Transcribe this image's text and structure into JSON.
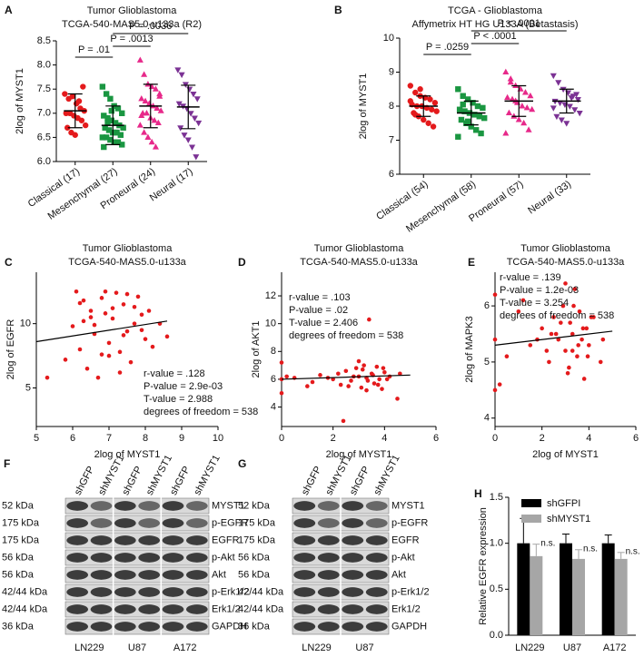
{
  "chart_data": [
    {
      "panel": "A",
      "type": "strip",
      "title": "Tumor Glioblastoma",
      "subtitle": "TCGA-540-MAS5.0-u133a (R2)",
      "ylabel": "2log of MYST1",
      "categories": [
        "Classical (17)",
        "Mesenchymal (27)",
        "Proneural (24)",
        "Neural (17)"
      ],
      "ylim": [
        6,
        8.5
      ],
      "yticks": [
        {
          "value": 6,
          "label": "6.0"
        },
        {
          "value": 6.5,
          "label": "6.5"
        },
        {
          "value": 7,
          "label": "7.0"
        },
        {
          "value": 7.5,
          "label": "7.5"
        },
        {
          "value": 8,
          "label": "8.0"
        },
        {
          "value": 8.5,
          "label": "8.5"
        }
      ],
      "groups": [
        {
          "color": "#e41a1c",
          "marker": "circle",
          "mean": 7.05,
          "sd": 0.35,
          "values": [
            7.4,
            7.3,
            7.35,
            7.2,
            7.1,
            7.05,
            7.0,
            7.0,
            6.95,
            6.9,
            6.85,
            6.75,
            6.7,
            6.6,
            6.55,
            7.25,
            7.55
          ]
        },
        {
          "color": "#1a9641",
          "marker": "square",
          "mean": 6.75,
          "sd": 0.4,
          "values": [
            7.55,
            7.4,
            7.3,
            7.15,
            7.1,
            7.0,
            6.95,
            6.9,
            6.85,
            6.8,
            6.75,
            6.7,
            6.7,
            6.65,
            6.6,
            6.6,
            6.55,
            6.5,
            6.5,
            6.45,
            6.4,
            6.4,
            6.35,
            6.3,
            6.8,
            7.05,
            6.6
          ]
        },
        {
          "color": "#e7298a",
          "marker": "triangle-up",
          "mean": 7.15,
          "sd": 0.45,
          "values": [
            8.1,
            7.8,
            7.6,
            7.55,
            7.5,
            7.4,
            7.3,
            7.25,
            7.2,
            7.15,
            7.1,
            7.05,
            7.0,
            7.0,
            6.9,
            6.85,
            6.8,
            6.75,
            6.6,
            6.5,
            6.4,
            6.3,
            7.35,
            6.95
          ]
        },
        {
          "color": "#7b3294",
          "marker": "triangle-down",
          "mean": 7.13,
          "sd": 0.45,
          "values": [
            7.9,
            7.8,
            7.6,
            7.5,
            7.4,
            7.3,
            7.2,
            7.15,
            7.1,
            7.0,
            6.9,
            6.8,
            6.7,
            6.55,
            6.45,
            6.3,
            6.1
          ]
        }
      ],
      "comparisons": [
        {
          "from": 0,
          "to": 1,
          "label": "P = .01"
        },
        {
          "from": 1,
          "to": 2,
          "label": "P = .0013"
        },
        {
          "from": 1,
          "to": 3,
          "label": "P = .0036"
        }
      ]
    },
    {
      "panel": "B",
      "type": "strip",
      "title": "TCGA - Glioblastoma",
      "subtitle": "Affymetrix HT HG U133A (Betastasis)",
      "ylabel": "2log of MYST1",
      "categories": [
        "Classical (54)",
        "Mesenchymal (58)",
        "Proneural (57)",
        "Neural (33)"
      ],
      "ylim": [
        6,
        10
      ],
      "yticks": [
        6,
        7,
        8,
        9,
        10
      ],
      "groups": [
        {
          "color": "#e41a1c",
          "marker": "circle",
          "mean": 8.0,
          "sd": 0.3,
          "values": [
            8.6,
            8.4,
            8.3,
            8.25,
            8.2,
            8.1,
            8.05,
            8.0,
            8.0,
            7.95,
            7.9,
            7.85,
            7.8,
            7.7,
            7.6,
            7.5,
            7.4,
            8.15,
            7.75,
            8.5
          ]
        },
        {
          "color": "#1a9641",
          "marker": "square",
          "mean": 7.8,
          "sd": 0.35,
          "values": [
            8.5,
            8.3,
            8.2,
            8.1,
            8.0,
            7.95,
            7.9,
            7.85,
            7.8,
            7.75,
            7.7,
            7.65,
            7.6,
            7.5,
            7.4,
            7.3,
            7.2,
            7.1,
            8.05,
            7.55
          ]
        },
        {
          "color": "#e7298a",
          "marker": "triangle-up",
          "mean": 8.15,
          "sd": 0.45,
          "values": [
            9.0,
            8.8,
            8.6,
            8.5,
            8.4,
            8.3,
            8.25,
            8.2,
            8.1,
            8.0,
            7.95,
            7.9,
            7.8,
            7.7,
            7.6,
            7.5,
            7.3,
            7.2,
            8.7,
            8.15
          ]
        },
        {
          "color": "#7b3294",
          "marker": "triangle-down",
          "mean": 8.15,
          "sd": 0.35,
          "values": [
            8.9,
            8.7,
            8.5,
            8.4,
            8.3,
            8.2,
            8.15,
            8.1,
            8.05,
            8.0,
            7.9,
            7.8,
            7.7,
            7.6,
            7.5,
            8.25,
            8.35,
            7.95
          ]
        }
      ],
      "comparisons": [
        {
          "from": 0,
          "to": 1,
          "label": "P = .0259"
        },
        {
          "from": 1,
          "to": 2,
          "label": "P < .0001"
        },
        {
          "from": 1,
          "to": 3,
          "label": "P < .0001"
        }
      ]
    },
    {
      "panel": "C",
      "type": "scatter",
      "title": "Tumor Glioblastoma",
      "subtitle": "TCGA-540-MAS5.0-u133a",
      "xlabel": "2log of MYST1",
      "ylabel": "2log of EGFR",
      "color": "#e41a1c",
      "xlim": [
        5,
        10
      ],
      "xticks": [
        5,
        6,
        7,
        8,
        9,
        10
      ],
      "ylim": [
        2,
        14
      ],
      "yticks": [
        5,
        10
      ],
      "x": [
        6.1,
        6.3,
        6.5,
        6.6,
        6.8,
        7.0,
        7.1,
        7.3,
        7.5,
        7.7,
        7.9,
        8.1,
        6.2,
        6.4,
        6.9,
        7.2,
        7.6,
        8.0,
        6.7,
        7.4,
        5.3,
        5.8,
        6.0,
        8.4,
        8.6,
        7.8,
        6.5,
        7.0,
        7.5,
        6.3,
        6.9,
        7.3,
        7.7,
        8.2,
        6.6,
        7.1,
        6.8,
        7.4,
        7.9,
        6.2
      ],
      "y": [
        12.5,
        11.8,
        10.5,
        9.2,
        12.0,
        8.5,
        11.2,
        7.8,
        12.3,
        10.0,
        9.5,
        11.0,
        8.0,
        6.5,
        10.8,
        12.4,
        7.0,
        8.8,
        5.8,
        11.5,
        5.8,
        7.2,
        9.8,
        10.0,
        9.0,
        12.1,
        11.0,
        7.5,
        9.4,
        10.2,
        12.5,
        6.2,
        11.3,
        8.2,
        9.9,
        10.4,
        7.6,
        9.1,
        10.7,
        11.6
      ],
      "fit": {
        "x": [
          5,
          8.6
        ],
        "y": [
          8.6,
          10.2
        ]
      },
      "stats": [
        "r-value = .128",
        "P-value = 2.9e-03",
        "T-value = 2.988",
        "degrees of freedom = 538"
      ]
    },
    {
      "panel": "D",
      "type": "scatter",
      "title": "Tumor Glioblastoma",
      "subtitle": "TCGA-540-MAS5.0-u133a",
      "xlabel": "2log of MYST1",
      "ylabel": "2log of AKT1",
      "color": "#e41a1c",
      "xlim": [
        0,
        6
      ],
      "xticks": [
        0,
        2,
        4,
        6
      ],
      "ylim": [
        2.6,
        13.7
      ],
      "yticks": [
        4,
        6,
        8,
        10,
        12
      ],
      "x": [
        0,
        0,
        0,
        0.5,
        1.0,
        1.5,
        2.0,
        2.3,
        2.5,
        2.7,
        2.9,
        3.0,
        3.1,
        3.2,
        3.3,
        3.4,
        3.5,
        3.6,
        3.7,
        3.8,
        3.9,
        4.0,
        4.2,
        4.5,
        1.2,
        1.8,
        2.2,
        2.6,
        2.8,
        3.15,
        3.35,
        3.55,
        3.75,
        3.95,
        4.1,
        0.2,
        2.4,
        3.0,
        3.3,
        4.6
      ],
      "y": [
        6.0,
        7.2,
        5.0,
        6.1,
        5.5,
        6.3,
        6.0,
        5.6,
        6.6,
        5.9,
        6.8,
        6.2,
        5.4,
        7.0,
        6.1,
        10.3,
        6.4,
        5.7,
        6.9,
        6.0,
        5.3,
        6.5,
        6.2,
        4.6,
        5.8,
        6.1,
        6.4,
        5.5,
        6.2,
        6.7,
        5.9,
        6.3,
        5.6,
        6.8,
        6.0,
        6.2,
        3.0,
        7.3,
        5.2,
        6.4
      ],
      "fit": {
        "x": [
          0,
          5
        ],
        "y": [
          6.0,
          6.3
        ]
      },
      "stats": [
        "r-value = .103",
        "P-value = .02",
        "T-value = 2.406",
        "degrees of freedom = 538"
      ]
    },
    {
      "panel": "E",
      "type": "scatter",
      "title": "Tumor Glioblastoma",
      "subtitle": "TCGA-540-MAS5.0-u133a",
      "xlabel": "2log of MYST1",
      "ylabel": "2log of MAPK3",
      "color": "#e41a1c",
      "xlim": [
        0,
        6
      ],
      "xticks": [
        0,
        2,
        4,
        6
      ],
      "ylim": [
        3.85,
        6.6
      ],
      "yticks": [
        4,
        5,
        6
      ],
      "x": [
        0,
        0,
        0,
        0.5,
        1.0,
        1.5,
        2.0,
        2.3,
        2.5,
        2.7,
        2.9,
        3.0,
        3.1,
        3.2,
        3.3,
        3.4,
        3.5,
        3.6,
        3.7,
        3.8,
        3.9,
        4.0,
        4.2,
        4.5,
        1.2,
        1.8,
        2.2,
        2.6,
        2.8,
        3.15,
        3.35,
        3.55,
        3.75,
        3.95,
        4.1,
        0.2,
        2.4,
        3.0,
        3.3,
        4.6
      ],
      "y": [
        5.4,
        6.2,
        4.5,
        5.1,
        5.9,
        5.3,
        5.6,
        5.0,
        5.8,
        5.4,
        6.0,
        5.2,
        4.8,
        5.7,
        5.5,
        6.3,
        5.1,
        5.9,
        5.4,
        4.7,
        5.6,
        5.3,
        5.8,
        5.0,
        6.1,
        5.4,
        5.2,
        5.5,
        5.7,
        4.9,
        6.0,
        5.3,
        5.6,
        5.1,
        5.8,
        4.6,
        5.5,
        6.4,
        5.2,
        5.4
      ],
      "fit": {
        "x": [
          0,
          5
        ],
        "y": [
          5.3,
          5.55
        ]
      },
      "stats": [
        "r-value = .139",
        "P-value = 1.2e-03",
        "T-value = 3.254",
        "degrees of freedom = 538"
      ]
    },
    {
      "panel": "H",
      "type": "bar",
      "ylabel": "Relative EGFR expression",
      "categories": [
        "LN229",
        "U87",
        "A172"
      ],
      "ylim": [
        0,
        1.5
      ],
      "yticks": [
        {
          "value": 0,
          "label": "0.0"
        },
        {
          "value": 0.5,
          "label": "0.5"
        },
        {
          "value": 1,
          "label": "1.0"
        },
        {
          "value": 1.5,
          "label": "1.5"
        }
      ],
      "series": [
        {
          "name": "shGFPI",
          "color": "#000000",
          "values": [
            1,
            1,
            1
          ],
          "errors": [
            0.27,
            0.1,
            0.09
          ]
        },
        {
          "name": "shMYST1",
          "color": "#a6a6a6",
          "values": [
            0.86,
            0.83,
            0.83
          ],
          "errors": [
            0.13,
            0.1,
            0.07
          ]
        }
      ],
      "annotations": [
        "n.s.",
        "n.s.",
        "n.s."
      ]
    }
  ],
  "blots": [
    {
      "panel": "F",
      "lanes": [
        "shGFP",
        "shMYST1",
        "shGFP",
        "shMYST1",
        "shGFP",
        "shMYST1"
      ],
      "rows": [
        {
          "size": "52 kDa",
          "protein": "MYST1"
        },
        {
          "size": "175 kDa",
          "protein": "p-EGFR"
        },
        {
          "size": "175 kDa",
          "protein": "EGFR"
        },
        {
          "size": "56 kDa",
          "protein": "p-Akt"
        },
        {
          "size": "56 kDa",
          "protein": "Akt"
        },
        {
          "size": "42/44 kDa",
          "protein": "p-Erk1/2"
        },
        {
          "size": "42/44 kDa",
          "protein": "Erk1/2"
        },
        {
          "size": "36 kDa",
          "protein": "GAPDH"
        }
      ],
      "cell_lines": [
        "LN229",
        "U87",
        "A172"
      ]
    },
    {
      "panel": "G",
      "lanes": [
        "shGFP",
        "shMYST1",
        "shGFP",
        "shMYST1"
      ],
      "rows": [
        {
          "size": "52 kDa",
          "protein": "MYST1"
        },
        {
          "size": "175 kDa",
          "protein": "p-EGFR"
        },
        {
          "size": "175 kDa",
          "protein": "EGFR"
        },
        {
          "size": "56 kDa",
          "protein": "p-Akt"
        },
        {
          "size": "56 kDa",
          "protein": "Akt"
        },
        {
          "size": "42/44 kDa",
          "protein": "p-Erk1/2"
        },
        {
          "size": "42/44 kDa",
          "protein": "Erk1/2"
        },
        {
          "size": "36 kDa",
          "protein": "GAPDH"
        }
      ],
      "cell_lines": [
        "LN229",
        "U87"
      ]
    }
  ]
}
